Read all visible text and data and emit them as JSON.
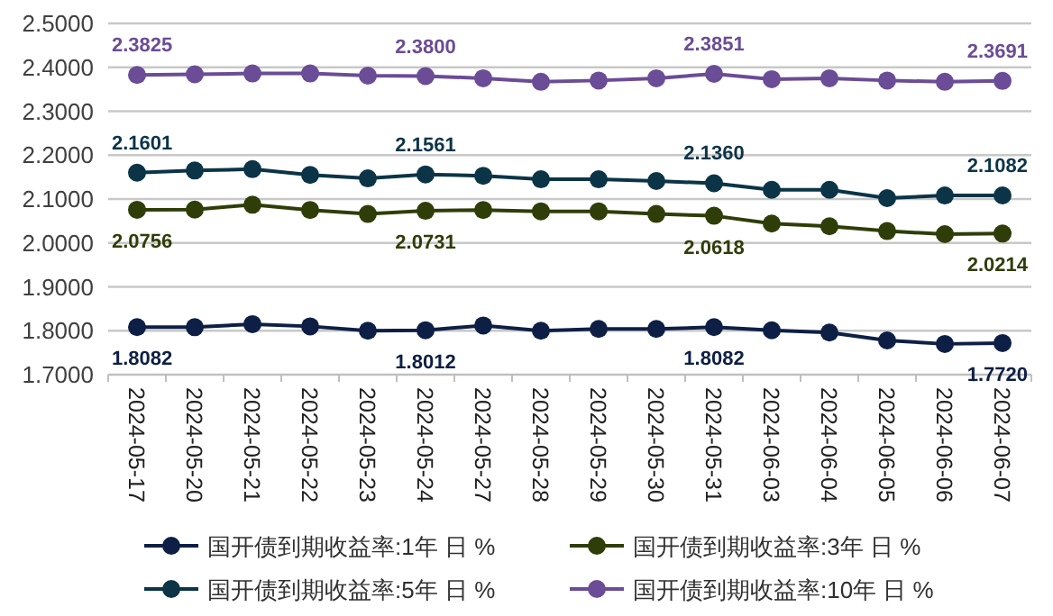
{
  "chart_data": {
    "type": "line",
    "categories": [
      "2024-05-17",
      "2024-05-20",
      "2024-05-21",
      "2024-05-22",
      "2024-05-23",
      "2024-05-24",
      "2024-05-27",
      "2024-05-28",
      "2024-05-29",
      "2024-05-30",
      "2024-05-31",
      "2024-06-03",
      "2024-06-04",
      "2024-06-05",
      "2024-06-06",
      "2024-06-07"
    ],
    "ylim": [
      1.7,
      2.5
    ],
    "yticks": [
      {
        "value": 1.7,
        "label": "1.7000"
      },
      {
        "value": 1.8,
        "label": "1.8000"
      },
      {
        "value": 1.9,
        "label": "1.9000"
      },
      {
        "value": 2.0,
        "label": "2.0000"
      },
      {
        "value": 2.1,
        "label": "2.1000"
      },
      {
        "value": 2.2,
        "label": "2.2000"
      },
      {
        "value": 2.3,
        "label": "2.3000"
      },
      {
        "value": 2.4,
        "label": "2.4000"
      },
      {
        "value": 2.5,
        "label": "2.5000"
      }
    ],
    "grid": "y",
    "legend": "bottom",
    "marker": "circle",
    "line_style": "solid",
    "series": [
      {
        "name": "国开债到期收益率:1年 日 %",
        "color": "#0d1f45",
        "values": [
          1.8082,
          1.808,
          1.815,
          1.81,
          1.8,
          1.8012,
          1.812,
          1.8,
          1.804,
          1.804,
          1.8082,
          1.801,
          1.796,
          1.778,
          1.77,
          1.772
        ],
        "value_labels": [
          "1.8082",
          null,
          null,
          null,
          null,
          "1.8012",
          null,
          null,
          null,
          null,
          "1.8082",
          null,
          null,
          null,
          null,
          "1.7720"
        ]
      },
      {
        "name": "国开债到期收益率:3年 日 %",
        "color": "#2f3d08",
        "values": [
          2.0756,
          2.076,
          2.087,
          2.075,
          2.066,
          2.0731,
          2.075,
          2.072,
          2.072,
          2.066,
          2.0618,
          2.044,
          2.038,
          2.027,
          2.02,
          2.0214
        ],
        "value_labels": [
          "2.0756",
          null,
          null,
          null,
          null,
          "2.0731",
          null,
          null,
          null,
          null,
          "2.0618",
          null,
          null,
          null,
          null,
          "2.0214"
        ]
      },
      {
        "name": "国开债到期收益率:5年 日 %",
        "color": "#0b3447",
        "values": [
          2.1601,
          2.165,
          2.168,
          2.155,
          2.147,
          2.1561,
          2.153,
          2.145,
          2.145,
          2.141,
          2.136,
          2.121,
          2.121,
          2.102,
          2.108,
          2.1082
        ],
        "value_labels": [
          "2.1601",
          null,
          null,
          null,
          null,
          "2.1561",
          null,
          null,
          null,
          null,
          "2.1360",
          null,
          null,
          null,
          null,
          "2.1082"
        ]
      },
      {
        "name": "国开债到期收益率:10年 日 %",
        "color": "#6b4c96",
        "values": [
          2.3825,
          2.384,
          2.386,
          2.386,
          2.381,
          2.38,
          2.375,
          2.367,
          2.37,
          2.375,
          2.3851,
          2.373,
          2.375,
          2.37,
          2.367,
          2.3691
        ],
        "value_labels": [
          "2.3825",
          null,
          null,
          null,
          null,
          "2.3800",
          null,
          null,
          null,
          null,
          "2.3851",
          null,
          null,
          null,
          null,
          "2.3691"
        ]
      }
    ]
  }
}
